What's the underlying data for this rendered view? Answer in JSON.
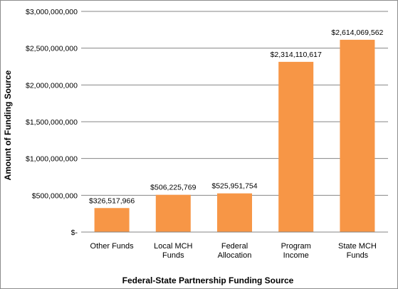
{
  "chart_data": {
    "type": "bar",
    "title": "",
    "xlabel": "Federal-State Partnership Funding Source",
    "ylabel": "Amount of Funding Source",
    "ylim": [
      0,
      3000000000
    ],
    "y_ticks": [
      {
        "value": 0,
        "label": "$-"
      },
      {
        "value": 500000000,
        "label": "$500,000,000"
      },
      {
        "value": 1000000000,
        "label": "$1,000,000,000"
      },
      {
        "value": 1500000000,
        "label": "$1,500,000,000"
      },
      {
        "value": 2000000000,
        "label": "$2,000,000,000"
      },
      {
        "value": 2500000000,
        "label": "$2,500,000,000"
      },
      {
        "value": 3000000000,
        "label": "$3,000,000,000"
      }
    ],
    "categories": [
      [
        "Other Funds"
      ],
      [
        "Local MCH",
        "Funds"
      ],
      [
        "Federal",
        "Allocation"
      ],
      [
        "Program",
        "Income"
      ],
      [
        "State MCH",
        "Funds"
      ]
    ],
    "values": [
      326517966,
      506225769,
      525951754,
      2314110617,
      2614069562
    ],
    "data_labels": [
      "$326,517,966",
      "$506,225,769",
      "$525,951,754",
      "$2,314,110,617",
      "$2,614,069,562"
    ],
    "bar_color": "#F79646",
    "gridlines": true,
    "legend": "none"
  }
}
